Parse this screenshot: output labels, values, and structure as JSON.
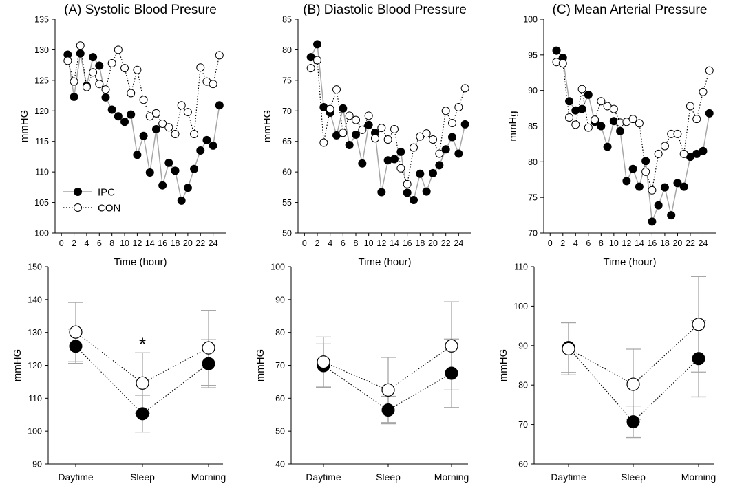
{
  "chart_data": [
    {
      "type": "line",
      "panel": "A",
      "title": "(A) Systolic Blood Presure",
      "xlabel": "Time (hour)",
      "ylabel": "mmHG",
      "xlim": [
        -1,
        26
      ],
      "ylim": [
        100,
        135
      ],
      "xticks": [
        "0",
        "2",
        "4",
        "6",
        "8",
        "10",
        "12",
        "14",
        "16",
        "18",
        "20",
        "22",
        "24"
      ],
      "yticks": [
        "100",
        "105",
        "110",
        "115",
        "120",
        "125",
        "130",
        "135"
      ],
      "legend": {
        "position": "bottom-left",
        "entries": [
          "IPC",
          "CON"
        ]
      },
      "x": [
        1,
        2,
        3,
        4,
        5,
        6,
        7,
        8,
        9,
        10,
        11,
        12,
        13,
        14,
        15,
        16,
        17,
        18,
        19,
        20,
        21,
        22,
        23,
        24,
        25
      ],
      "series": [
        {
          "name": "IPC",
          "values": [
            129.2,
            122.3,
            129.4,
            124.1,
            128.8,
            127.4,
            122.2,
            120.2,
            119.1,
            118.2,
            119.4,
            112.8,
            115.9,
            109.9,
            117.0,
            107.8,
            111.5,
            110.2,
            105.3,
            107.4,
            110.5,
            113.5,
            115.2,
            114.3,
            120.9
          ]
        },
        {
          "name": "CON",
          "values": [
            128.2,
            124.8,
            130.7,
            123.9,
            126.3,
            124.4,
            123.5,
            127.8,
            130.0,
            127.0,
            122.9,
            126.7,
            121.8,
            119.1,
            119.6,
            117.9,
            117.3,
            116.2,
            120.9,
            119.8,
            116.2,
            127.1,
            124.8,
            124.4,
            129.1
          ]
        }
      ]
    },
    {
      "type": "line",
      "panel": "B",
      "title": "(B) Diastolic Blood Pressure",
      "xlabel": "Time (hour)",
      "ylabel": "mmHG",
      "xlim": [
        -1,
        26
      ],
      "ylim": [
        50,
        85
      ],
      "xticks": [
        "0",
        "2",
        "4",
        "6",
        "8",
        "10",
        "12",
        "14",
        "16",
        "18",
        "20",
        "22",
        "24"
      ],
      "yticks": [
        "50",
        "55",
        "60",
        "65",
        "70",
        "75",
        "80",
        "85"
      ],
      "x": [
        1,
        2,
        3,
        4,
        5,
        6,
        7,
        8,
        9,
        10,
        11,
        12,
        13,
        14,
        15,
        16,
        17,
        18,
        19,
        20,
        21,
        22,
        23,
        24,
        25
      ],
      "series": [
        {
          "name": "IPC",
          "values": [
            78.8,
            80.9,
            70.6,
            69.7,
            66.0,
            70.4,
            64.4,
            66.1,
            61.4,
            67.7,
            66.4,
            56.7,
            61.9,
            62.1,
            63.3,
            56.6,
            55.4,
            59.7,
            56.8,
            59.8,
            61.1,
            63.7,
            65.7,
            63.0,
            67.8
          ]
        },
        {
          "name": "CON",
          "values": [
            77.0,
            78.3,
            64.8,
            70.3,
            73.5,
            66.4,
            69.2,
            68.5,
            66.9,
            69.2,
            65.5,
            67.2,
            65.3,
            67.0,
            60.6,
            58.0,
            64.0,
            65.8,
            66.3,
            65.3,
            63.0,
            70.0,
            68.0,
            70.6,
            73.7
          ]
        }
      ]
    },
    {
      "type": "line",
      "panel": "C",
      "title": "(C) Mean Arterial Pressure",
      "xlabel": "Time (hour)",
      "ylabel": "mmHg",
      "xlim": [
        -1,
        26
      ],
      "ylim": [
        70,
        100
      ],
      "xticks": [
        "0",
        "2",
        "4",
        "6",
        "8",
        "10",
        "12",
        "14",
        "16",
        "18",
        "20",
        "22",
        "24"
      ],
      "yticks": [
        "70",
        "75",
        "80",
        "85",
        "90",
        "95",
        "100"
      ],
      "x": [
        1,
        2,
        3,
        4,
        5,
        6,
        7,
        8,
        9,
        10,
        11,
        12,
        13,
        14,
        15,
        16,
        17,
        18,
        19,
        20,
        21,
        22,
        23,
        24,
        25
      ],
      "series": [
        {
          "name": "IPC",
          "values": [
            95.6,
            94.6,
            88.5,
            87.2,
            87.4,
            89.4,
            85.6,
            85.0,
            82.1,
            85.7,
            84.3,
            77.3,
            79.0,
            76.5,
            80.1,
            71.6,
            73.9,
            76.4,
            72.5,
            77.0,
            76.5,
            80.7,
            81.1,
            81.5,
            86.8
          ]
        },
        {
          "name": "CON",
          "values": [
            94.0,
            93.8,
            86.2,
            85.2,
            90.2,
            84.8,
            85.9,
            88.5,
            87.8,
            87.4,
            85.5,
            85.6,
            86.0,
            85.4,
            78.6,
            76.0,
            81.1,
            82.2,
            83.9,
            83.9,
            81.1,
            87.8,
            86.0,
            89.8,
            92.8
          ]
        }
      ]
    },
    {
      "type": "scatter",
      "panel": "A-summary",
      "ylabel": "mmHG",
      "ylim": [
        90,
        150
      ],
      "yticks": [
        "90",
        "100",
        "110",
        "120",
        "130",
        "140",
        "150"
      ],
      "categories": [
        "Daytime",
        "Sleep",
        "Morning"
      ],
      "annotations": [
        {
          "category": "Sleep",
          "text": "*"
        }
      ],
      "series": [
        {
          "name": "IPC",
          "values": [
            125.8,
            105.3,
            120.5
          ],
          "error": [
            5.2,
            5.6,
            7.3
          ]
        },
        {
          "name": "CON",
          "values": [
            130.1,
            114.6,
            125.3
          ],
          "error": [
            9.0,
            9.2,
            11.4
          ]
        }
      ]
    },
    {
      "type": "scatter",
      "panel": "B-summary",
      "ylabel": "mmHG",
      "ylim": [
        40,
        100
      ],
      "yticks": [
        "40",
        "50",
        "60",
        "70",
        "80",
        "90",
        "100"
      ],
      "categories": [
        "Daytime",
        "Sleep",
        "Morning"
      ],
      "series": [
        {
          "name": "IPC",
          "values": [
            69.9,
            56.4,
            67.6
          ],
          "error": [
            6.6,
            4.2,
            10.4
          ]
        },
        {
          "name": "CON",
          "values": [
            71.0,
            62.5,
            75.9
          ],
          "error": [
            7.6,
            9.9,
            13.4
          ]
        }
      ]
    },
    {
      "type": "scatter",
      "panel": "C-summary",
      "ylabel": "mmHG",
      "ylim": [
        60,
        110
      ],
      "yticks": [
        "60",
        "70",
        "80",
        "90",
        "100",
        "110"
      ],
      "categories": [
        "Daytime",
        "Sleep",
        "Morning"
      ],
      "series": [
        {
          "name": "IPC",
          "values": [
            89.5,
            70.7,
            86.7
          ],
          "error": [
            6.3,
            4.0,
            9.7
          ]
        },
        {
          "name": "CON",
          "values": [
            89.2,
            80.2,
            95.4
          ],
          "error": [
            6.6,
            8.9,
            12.1
          ]
        }
      ]
    }
  ]
}
